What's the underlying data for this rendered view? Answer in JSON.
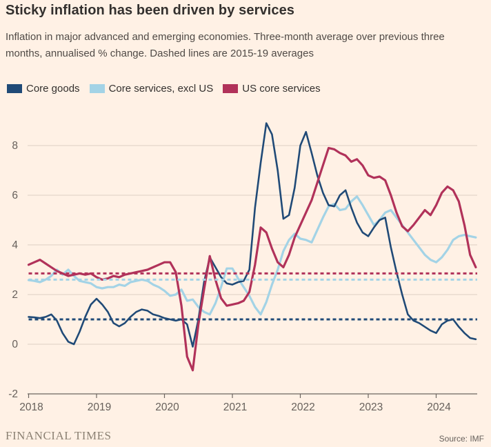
{
  "page": {
    "title": "Sticky inflation has been driven by services",
    "subtitle": "Inflation in major advanced and emerging economies. Three-month average over previous three months, annualised % change. Dashed lines are 2015-19 averages",
    "footer_brand": "FINANCIAL TIMES",
    "source": "Source: IMF",
    "background_color": "#fff1e5"
  },
  "chart_data": {
    "type": "line",
    "title": "Sticky inflation has been driven by services",
    "subtitle": "Inflation in major advanced and emerging economies. Three-month average over previous three months, annualised % change. Dashed lines are 2015-19 averages",
    "x_unit": "month",
    "x_start": "2018-01",
    "x_end": "2024-08",
    "x_ticks": [
      2018,
      2019,
      2020,
      2021,
      2022,
      2023,
      2024
    ],
    "x_tick_labels": [
      "2018",
      "2019",
      "2020",
      "2021",
      "2022",
      "2023",
      "2024"
    ],
    "y_ticks": [
      8,
      6,
      4,
      2,
      0,
      -2
    ],
    "y_tick_labels": [
      "8",
      "6",
      "4",
      "2",
      "0",
      "-2"
    ],
    "ylim": [
      -2,
      8
    ],
    "grid": true,
    "legend_position": "top",
    "gridline_color": "#ddd0c4",
    "axis_color": "#6b655f",
    "dashed_note": "Dashed lines are 2015-19 averages",
    "series": [
      {
        "name": "Core goods",
        "color": "#204a77",
        "stroke_width": 2.6,
        "average_2015_19": 1.0,
        "values": [
          1.1,
          1.08,
          1.05,
          1.1,
          1.2,
          0.95,
          0.45,
          0.1,
          0.0,
          0.5,
          1.1,
          1.6,
          1.83,
          1.6,
          1.3,
          0.85,
          0.72,
          0.85,
          1.1,
          1.3,
          1.4,
          1.35,
          1.2,
          1.14,
          1.05,
          1.0,
          0.95,
          1.0,
          0.8,
          -0.1,
          1.0,
          2.5,
          3.5,
          3.1,
          2.7,
          2.45,
          2.4,
          2.5,
          2.55,
          3.0,
          5.5,
          7.3,
          8.9,
          8.45,
          7.0,
          5.05,
          5.2,
          6.3,
          8.0,
          8.55,
          7.7,
          6.8,
          6.1,
          5.6,
          5.55,
          6.0,
          6.2,
          5.5,
          4.9,
          4.5,
          4.35,
          4.7,
          5.0,
          5.1,
          3.9,
          2.9,
          2.0,
          1.2,
          0.95,
          0.85,
          0.7,
          0.55,
          0.45,
          0.8,
          0.95,
          1.0,
          0.7,
          0.45,
          0.25,
          0.2
        ]
      },
      {
        "name": "Core services, excl US",
        "color": "#a3d3e6",
        "stroke_width": 3.2,
        "average_2015_19": 2.6,
        "values": [
          2.58,
          2.55,
          2.5,
          2.6,
          2.75,
          3.0,
          2.8,
          3.0,
          2.75,
          2.55,
          2.5,
          2.45,
          2.3,
          2.25,
          2.3,
          2.3,
          2.4,
          2.35,
          2.5,
          2.55,
          2.6,
          2.55,
          2.4,
          2.3,
          2.15,
          1.95,
          2.0,
          2.2,
          1.75,
          1.8,
          1.5,
          1.3,
          1.2,
          1.65,
          2.3,
          3.05,
          3.05,
          2.65,
          2.3,
          1.95,
          1.5,
          1.2,
          1.7,
          2.4,
          3.0,
          3.75,
          4.2,
          4.45,
          4.25,
          4.2,
          4.1,
          4.6,
          5.1,
          5.55,
          5.65,
          5.4,
          5.45,
          5.75,
          5.95,
          5.6,
          5.2,
          4.8,
          5.0,
          5.3,
          5.4,
          5.1,
          4.8,
          4.5,
          4.2,
          3.9,
          3.6,
          3.4,
          3.3,
          3.5,
          3.8,
          4.2,
          4.35,
          4.4,
          4.35,
          4.3
        ]
      },
      {
        "name": "US core services",
        "color": "#b1325a",
        "stroke_width": 3.2,
        "average_2015_19": 2.85,
        "values": [
          3.2,
          3.3,
          3.4,
          3.25,
          3.1,
          2.95,
          2.85,
          2.75,
          2.8,
          2.85,
          2.8,
          2.85,
          2.7,
          2.6,
          2.65,
          2.75,
          2.7,
          2.8,
          2.85,
          2.9,
          2.95,
          3.0,
          3.1,
          3.2,
          3.3,
          3.3,
          2.9,
          1.55,
          -0.5,
          -1.05,
          0.8,
          2.2,
          3.55,
          2.6,
          1.85,
          1.55,
          1.6,
          1.65,
          1.75,
          2.1,
          3.2,
          4.7,
          4.5,
          3.85,
          3.3,
          3.1,
          3.6,
          4.3,
          4.8,
          5.3,
          5.8,
          6.5,
          7.2,
          7.9,
          7.85,
          7.7,
          7.6,
          7.35,
          7.45,
          7.2,
          6.8,
          6.7,
          6.75,
          6.6,
          6.0,
          5.3,
          4.75,
          4.55,
          4.8,
          5.1,
          5.4,
          5.2,
          5.6,
          6.1,
          6.35,
          6.2,
          5.75,
          4.8,
          3.6,
          3.1
        ]
      }
    ]
  }
}
